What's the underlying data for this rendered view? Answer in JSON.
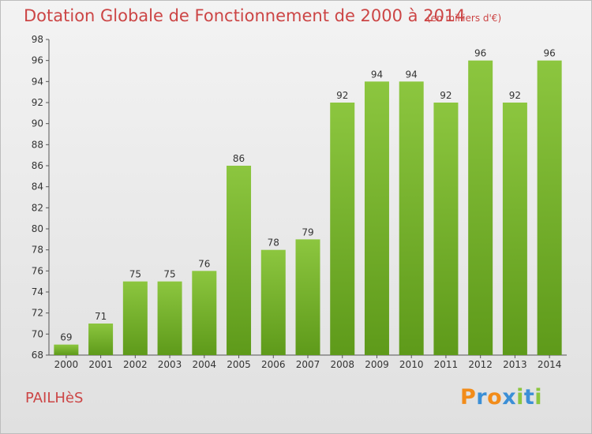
{
  "chart_data": {
    "type": "bar",
    "title": "Dotation Globale de Fonctionnement de 2000 à 2014",
    "unit_note": "(en milliers d'€)",
    "categories": [
      "2000",
      "2001",
      "2002",
      "2003",
      "2004",
      "2005",
      "2006",
      "2007",
      "2008",
      "2009",
      "2010",
      "2011",
      "2012",
      "2013",
      "2014"
    ],
    "values": [
      69,
      71,
      75,
      75,
      76,
      86,
      78,
      79,
      92,
      94,
      94,
      92,
      96,
      92,
      96
    ],
    "ylim": [
      68,
      98
    ],
    "yticks": [
      68,
      70,
      72,
      74,
      76,
      78,
      80,
      82,
      84,
      86,
      88,
      90,
      92,
      94,
      96,
      98
    ],
    "grid": false,
    "bar_color": "#8cc63f",
    "bar_color_dark": "#5e9a1a"
  },
  "commune": "PAILHèS",
  "logo": {
    "letters": [
      "P",
      "r",
      "o",
      "x",
      "i",
      "t",
      "i"
    ],
    "colors": [
      "#f28c1a",
      "#3b8fd6",
      "#f28c1a",
      "#3b8fd6",
      "#8cc63f",
      "#3b8fd6",
      "#8cc63f"
    ]
  }
}
